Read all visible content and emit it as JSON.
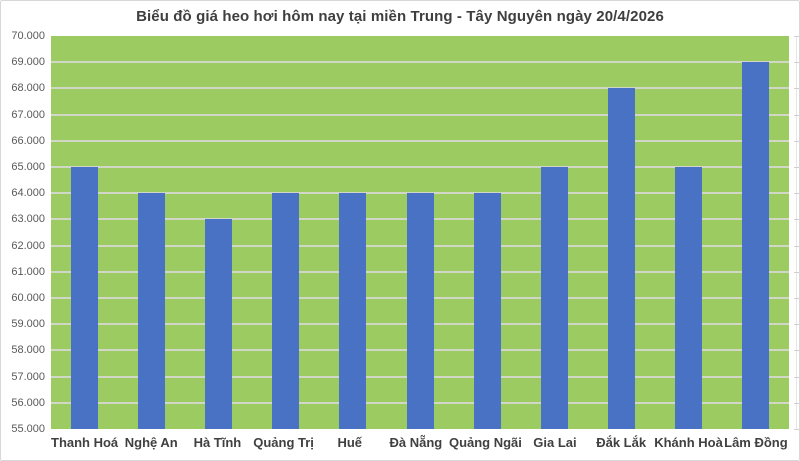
{
  "title": "Biểu đồ giá heo hơi hôm nay tại miền Trung - Tây Nguyên ngày 20/4/2026",
  "chart_data": {
    "type": "bar",
    "title": "Biểu đồ giá heo hơi hôm nay tại miền Trung - Tây Nguyên ngày 20/4/2026",
    "categories": [
      "Thanh Hoá",
      "Nghệ An",
      "Hà Tĩnh",
      "Quảng Trị",
      "Huế",
      "Đà Nẵng",
      "Quảng Ngãi",
      "Gia Lai",
      "Đắk Lắk",
      "Khánh Hoà",
      "Lâm Đồng"
    ],
    "values": [
      65000,
      64000,
      63000,
      64000,
      64000,
      64000,
      64000,
      65000,
      68000,
      65000,
      69000
    ],
    "xlabel": "",
    "ylabel": "",
    "ylim": [
      55000,
      70000
    ],
    "ytick_step": 1000,
    "ytick_labels": [
      "70.000",
      "69.000",
      "68.000",
      "67.000",
      "66.000",
      "65.000",
      "64.000",
      "63.000",
      "62.000",
      "61.000",
      "60.000",
      "59.000",
      "58.000",
      "57.000",
      "56.000",
      "55.000"
    ],
    "grid": true,
    "legend": false,
    "colors": {
      "bar": "#4a72c4",
      "plot_background": "#9ccb62",
      "gridline": "#d9d9d9",
      "title_text": "#3f3f3f",
      "ytick_text": "#595959",
      "xtick_text": "#404040",
      "page_background": "#ffffff",
      "frame_border": "#d8d8d8"
    }
  }
}
